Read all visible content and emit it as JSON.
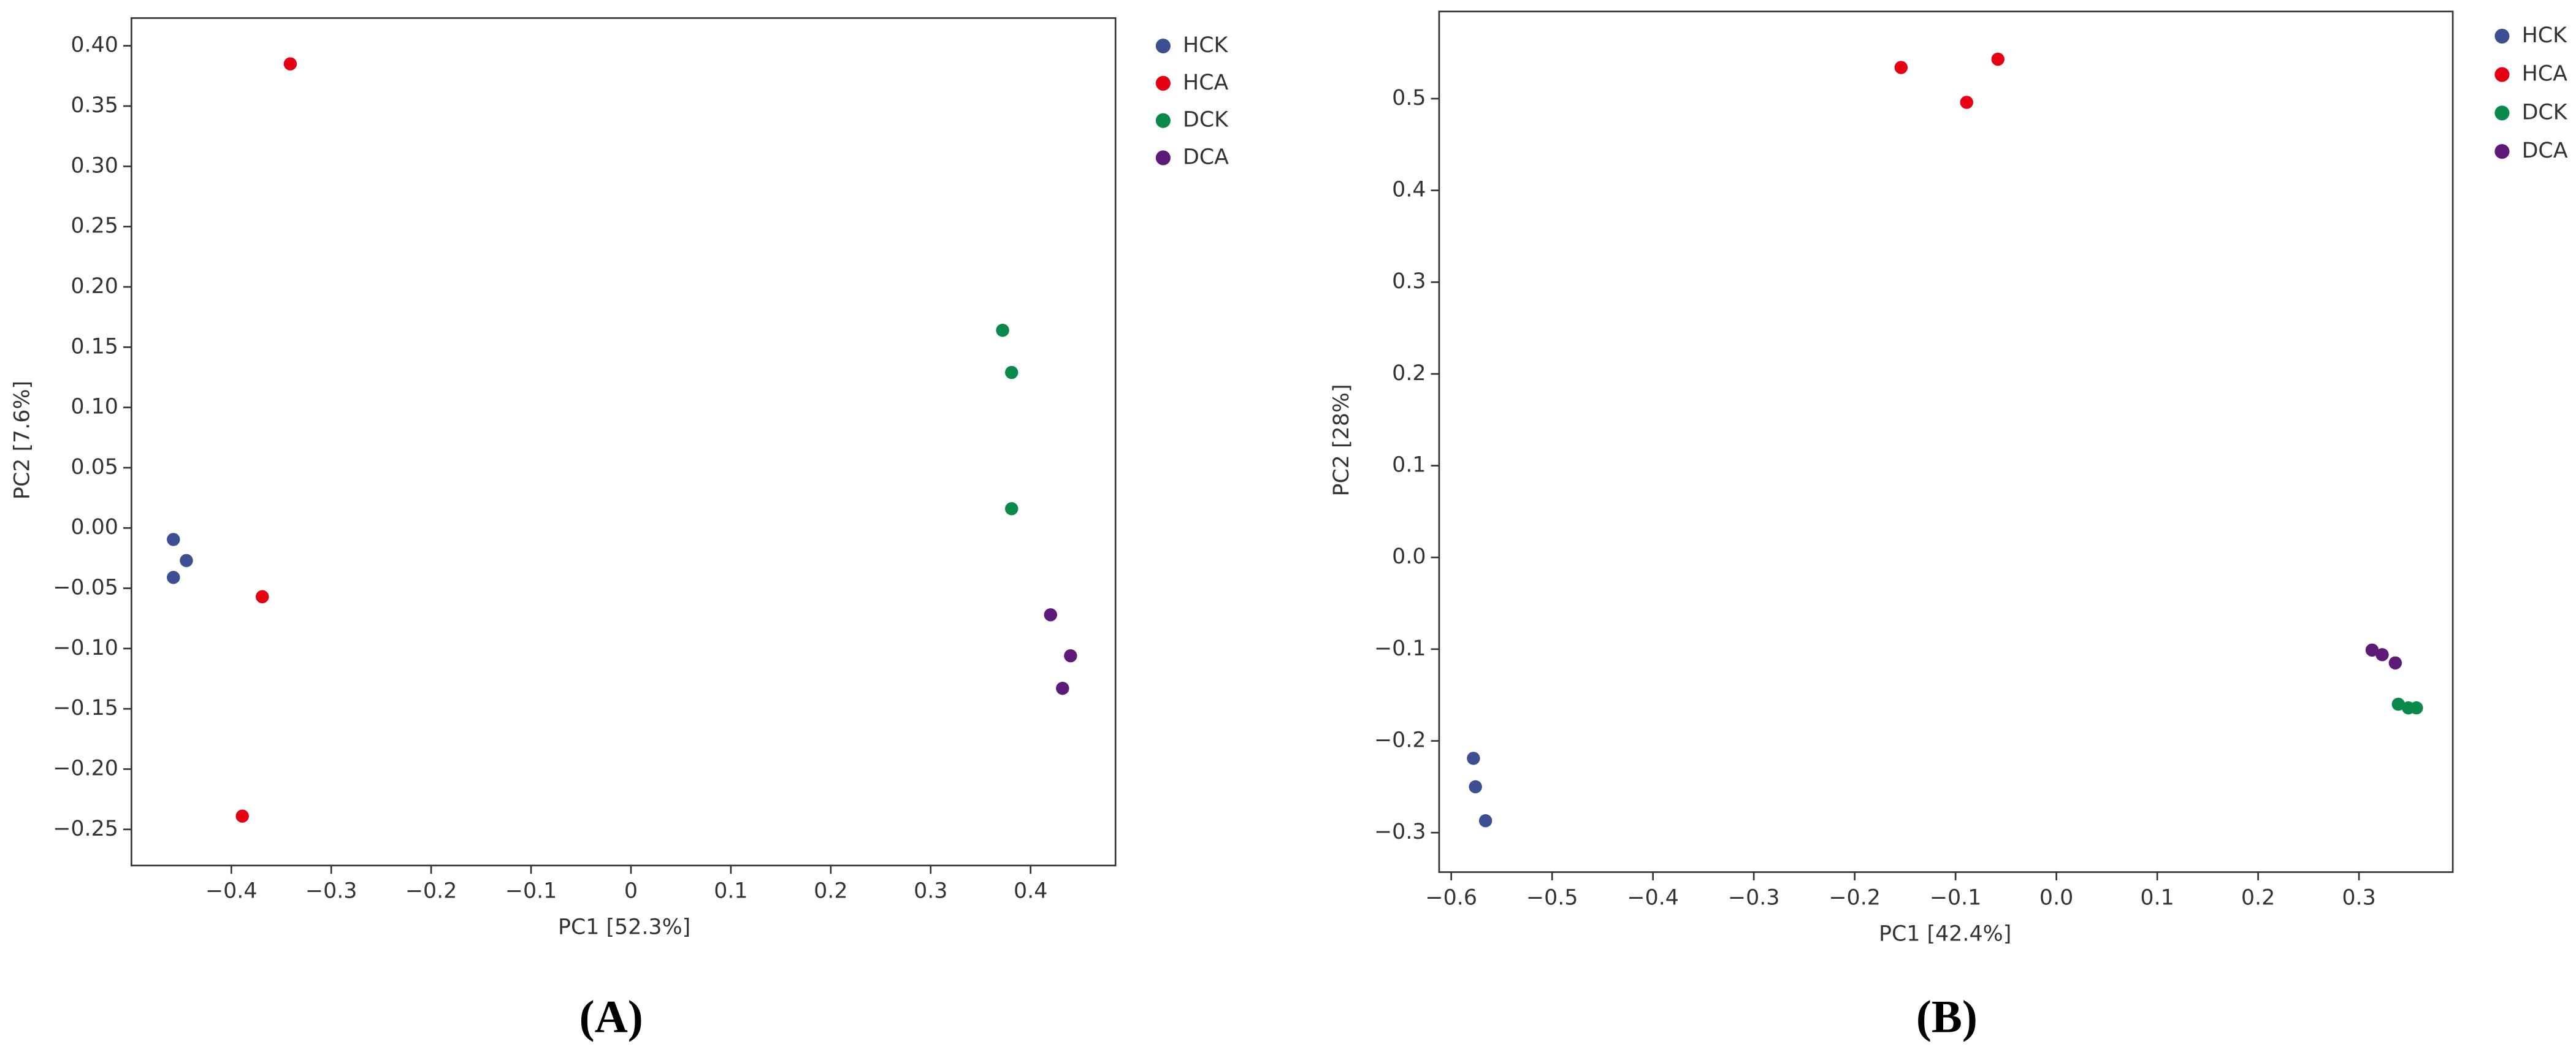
{
  "chart_data": [
    {
      "type": "scatter",
      "panel_label": "(A)",
      "x_label": "PC1 [52.3%]",
      "y_label": "PC2 [7.6%]",
      "xlim": [
        -0.5,
        0.485
      ],
      "ylim": [
        -0.28,
        0.423
      ],
      "xticks": [
        {
          "value": -0.4,
          "label": "−0.4"
        },
        {
          "value": -0.3,
          "label": "−0.3"
        },
        {
          "value": -0.2,
          "label": "−0.2"
        },
        {
          "value": -0.1,
          "label": "−0.1"
        },
        0,
        0.1,
        0.2,
        0.3,
        0.4
      ],
      "yticks": [
        {
          "value": -0.25,
          "label": "−0.25"
        },
        {
          "value": -0.2,
          "label": "−0.20"
        },
        {
          "value": -0.15,
          "label": "−0.15"
        },
        {
          "value": -0.1,
          "label": "−0.10"
        },
        {
          "value": -0.05,
          "label": "−0.05"
        },
        {
          "value": 0,
          "label": "0.00"
        },
        0.05,
        {
          "value": 0.1,
          "label": "0.10"
        },
        0.15,
        {
          "value": 0.2,
          "label": "0.20"
        },
        0.25,
        {
          "value": 0.3,
          "label": "0.30"
        },
        0.35,
        {
          "value": 0.4,
          "label": "0.40"
        }
      ],
      "series": [
        {
          "name": "HCK",
          "color": "#3c4f92",
          "x": [
            -0.458,
            -0.445,
            -0.458
          ],
          "y": [
            -0.0095,
            -0.027,
            -0.041
          ]
        },
        {
          "name": "HCA",
          "color": "#e60012",
          "x": [
            -0.341,
            -0.369,
            -0.389
          ],
          "y": [
            0.385,
            -0.057,
            -0.239
          ]
        },
        {
          "name": "DCK",
          "color": "#0a8a4a",
          "x": [
            0.372,
            0.381,
            0.381
          ],
          "y": [
            0.164,
            0.129,
            0.016
          ]
        },
        {
          "name": "DCA",
          "color": "#5e1a78",
          "x": [
            0.42,
            0.44,
            0.432
          ],
          "y": [
            -0.072,
            -0.106,
            -0.133
          ]
        }
      ]
    },
    {
      "type": "scatter",
      "panel_label": "(B)",
      "x_label": "PC1 [42.4%]",
      "y_label": "PC2 [28%]",
      "xlim": [
        -0.612,
        0.393
      ],
      "ylim": [
        -0.343,
        0.595
      ],
      "xticks": [
        {
          "value": -0.6,
          "label": "−0.6"
        },
        {
          "value": -0.5,
          "label": "−0.5"
        },
        {
          "value": -0.4,
          "label": "−0.4"
        },
        {
          "value": -0.3,
          "label": "−0.3"
        },
        {
          "value": -0.2,
          "label": "−0.2"
        },
        {
          "value": -0.1,
          "label": "−0.1"
        },
        {
          "value": 0,
          "label": "0.0"
        },
        0.1,
        0.2,
        0.3
      ],
      "yticks": [
        {
          "value": -0.3,
          "label": "−0.3"
        },
        {
          "value": -0.2,
          "label": "−0.2"
        },
        {
          "value": -0.1,
          "label": "−0.1"
        },
        {
          "value": 0,
          "label": "0.0"
        },
        0.1,
        0.2,
        0.3,
        0.4,
        0.5
      ],
      "series": [
        {
          "name": "HCK",
          "color": "#3c4f92",
          "x": [
            -0.578,
            -0.576,
            -0.566
          ],
          "y": [
            -0.219,
            -0.25,
            -0.287
          ]
        },
        {
          "name": "HCA",
          "color": "#e60012",
          "x": [
            -0.154,
            -0.089,
            -0.058
          ],
          "y": [
            0.534,
            0.496,
            0.543
          ]
        },
        {
          "name": "DCK",
          "color": "#0a8a4a",
          "x": [
            0.339,
            0.349,
            0.357
          ],
          "y": [
            -0.16,
            -0.164,
            -0.164
          ]
        },
        {
          "name": "DCA",
          "color": "#5e1a78",
          "x": [
            0.313,
            0.323,
            0.336
          ],
          "y": [
            -0.101,
            -0.106,
            -0.115
          ]
        }
      ]
    }
  ]
}
